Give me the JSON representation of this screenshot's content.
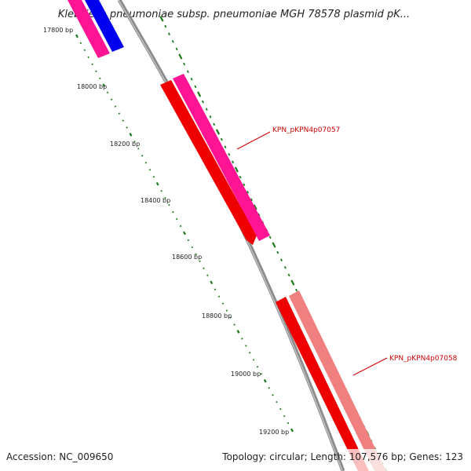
{
  "title": "Klebsiella pneumoniae subsp. pneumoniae MGH 78578 plasmid pK...",
  "scale_labels": [
    "17800 bp",
    "18000 bp",
    "18200 bp",
    "18400 bp",
    "18600 bp",
    "18800 bp",
    "19000 bp",
    "19200 bp"
  ],
  "gene_labels": [
    {
      "text": "KPN_pKPN4p07057",
      "color": "#cc0000"
    },
    {
      "text": "KPN_pKPN4p07058",
      "color": "#cc0000"
    }
  ],
  "footer": {
    "accession": "Accession: NC_009650",
    "summary": "Topology: circular; Length: 107,576 bp; Genes: 123"
  },
  "colors": {
    "backbone": "#8c8c8c",
    "cds": "#ee0000",
    "cds_pink": "#ff1493",
    "cds_salmon": "#f08080",
    "cds_blue": "#0000ee",
    "ticks": "#1a7a1a"
  }
}
